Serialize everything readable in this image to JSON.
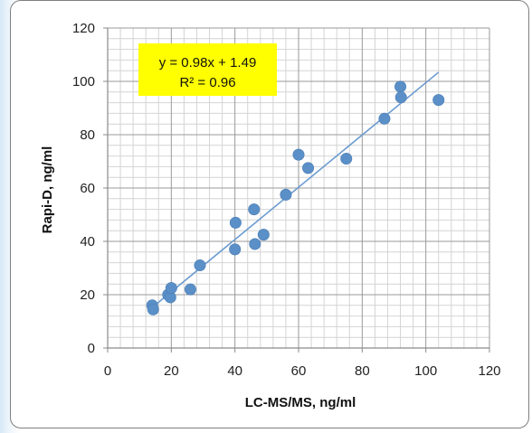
{
  "chart_data": {
    "type": "scatter",
    "xlabel": "LC-MS/MS, ng/ml",
    "ylabel": "Rapi-D, ng/ml",
    "xlim": [
      0,
      120
    ],
    "ylim": [
      0,
      120
    ],
    "xticks": [
      0,
      20,
      40,
      60,
      80,
      100,
      120
    ],
    "yticks": [
      0,
      20,
      40,
      60,
      80,
      100,
      120
    ],
    "grid": true,
    "points": [
      {
        "x": 14,
        "y": 16
      },
      {
        "x": 14.3,
        "y": 14.5
      },
      {
        "x": 19,
        "y": 20
      },
      {
        "x": 19.7,
        "y": 19
      },
      {
        "x": 20,
        "y": 22.5
      },
      {
        "x": 26,
        "y": 22
      },
      {
        "x": 29,
        "y": 31
      },
      {
        "x": 40,
        "y": 37
      },
      {
        "x": 40.2,
        "y": 47
      },
      {
        "x": 46,
        "y": 52
      },
      {
        "x": 46.3,
        "y": 39
      },
      {
        "x": 49,
        "y": 42.5
      },
      {
        "x": 56,
        "y": 57.5
      },
      {
        "x": 60,
        "y": 72.5
      },
      {
        "x": 63,
        "y": 67.5
      },
      {
        "x": 75,
        "y": 71
      },
      {
        "x": 87,
        "y": 86
      },
      {
        "x": 92,
        "y": 98
      },
      {
        "x": 92.2,
        "y": 94
      },
      {
        "x": 104,
        "y": 93
      }
    ],
    "trendline": {
      "slope": 0.98,
      "intercept": 1.49,
      "x_range": [
        14,
        104
      ]
    },
    "annotation": {
      "equation": "y = 0.98x + 1.49",
      "r_squared": "R² = 0.96",
      "background": "#ffff00"
    },
    "colors": {
      "marker": "#5b8fc7",
      "trendline": "#6b9bd0",
      "major_grid": "#9a9a9a",
      "minor_grid": "#d4d4d4"
    }
  }
}
